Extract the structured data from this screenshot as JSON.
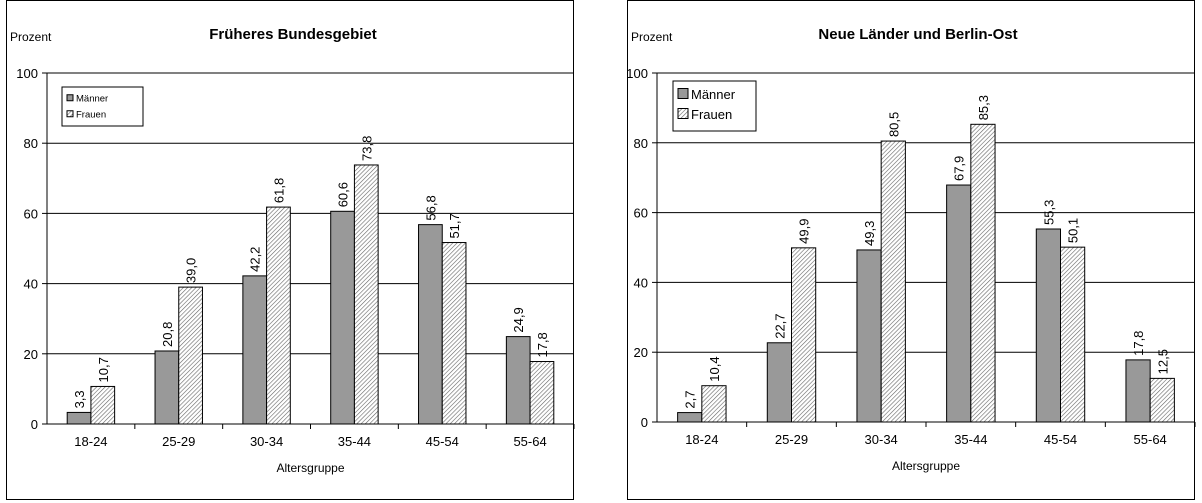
{
  "chart_data": [
    {
      "type": "bar",
      "title": "Früheres Bundesgebiet",
      "ylabel": "Prozent",
      "xlabel": "Altersgruppe",
      "ylim": [
        0,
        100
      ],
      "yticks": [
        0,
        20,
        40,
        60,
        80,
        100
      ],
      "grid": true,
      "legend_position": "top-left",
      "categories": [
        "18-24",
        "25-29",
        "30-34",
        "35-44",
        "45-54",
        "55-64"
      ],
      "series": [
        {
          "name": "Männer",
          "values": [
            3.3,
            20.8,
            42.2,
            60.6,
            56.8,
            24.9
          ],
          "labels": [
            "3,3",
            "20,8",
            "42,2",
            "60,6",
            "56,8",
            "24,9"
          ],
          "color": "#999999"
        },
        {
          "name": "Frauen",
          "values": [
            10.7,
            39.0,
            61.8,
            73.8,
            51.7,
            17.8
          ],
          "labels": [
            "10,7",
            "39,0",
            "61,8",
            "73,8",
            "51,7",
            "17,8"
          ],
          "color": "hatched"
        }
      ]
    },
    {
      "type": "bar",
      "title": "Neue Länder und Berlin-Ost",
      "ylabel": "Prozent",
      "xlabel": "Altersgruppe",
      "ylim": [
        0,
        100
      ],
      "yticks": [
        0,
        20,
        40,
        60,
        80,
        100
      ],
      "grid": true,
      "legend_position": "top-left",
      "categories": [
        "18-24",
        "25-29",
        "30-34",
        "35-44",
        "45-54",
        "55-64"
      ],
      "series": [
        {
          "name": "Männer",
          "values": [
            2.7,
            22.7,
            49.3,
            67.9,
            55.3,
            17.8
          ],
          "labels": [
            "2,7",
            "22,7",
            "49,3",
            "67,9",
            "55,3",
            "17,8"
          ],
          "color": "#999999"
        },
        {
          "name": "Frauen",
          "values": [
            10.4,
            49.9,
            80.5,
            85.3,
            50.1,
            12.5
          ],
          "labels": [
            "10,4",
            "49,9",
            "80,5",
            "85,3",
            "50,1",
            "12,5"
          ],
          "color": "hatched"
        }
      ]
    }
  ]
}
